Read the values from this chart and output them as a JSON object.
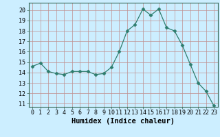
{
  "x": [
    0,
    1,
    2,
    3,
    4,
    5,
    6,
    7,
    8,
    9,
    10,
    11,
    12,
    13,
    14,
    15,
    16,
    17,
    18,
    19,
    20,
    21,
    22,
    23
  ],
  "y": [
    14.6,
    14.9,
    14.1,
    13.9,
    13.8,
    14.1,
    14.1,
    14.1,
    13.8,
    13.9,
    14.5,
    16.0,
    18.0,
    18.6,
    20.1,
    19.5,
    20.1,
    18.3,
    18.0,
    16.6,
    14.8,
    13.0,
    12.2,
    10.8
  ],
  "xlabel": "Humidex (Indice chaleur)",
  "xlim": [
    -0.5,
    23.5
  ],
  "ylim": [
    10.7,
    20.7
  ],
  "yticks": [
    11,
    12,
    13,
    14,
    15,
    16,
    17,
    18,
    19,
    20
  ],
  "xticks": [
    0,
    1,
    2,
    3,
    4,
    5,
    6,
    7,
    8,
    9,
    10,
    11,
    12,
    13,
    14,
    15,
    16,
    17,
    18,
    19,
    20,
    21,
    22,
    23
  ],
  "line_color": "#2e7d6e",
  "marker": "D",
  "marker_size": 2.5,
  "bg_color": "#cceeff",
  "grid_color": "#c09090",
  "label_fontsize": 7.5,
  "tick_fontsize": 6.0
}
